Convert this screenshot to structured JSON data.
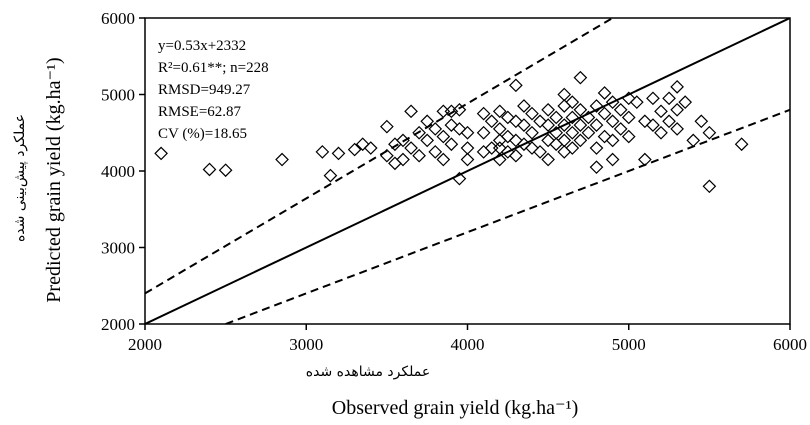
{
  "chart_data": {
    "type": "scatter",
    "xlabel": "Observed grain yield (kg.ha⁻¹)",
    "xlabel_fa": "عملکرد مشاهده شده",
    "ylabel": "Predicted grain yield (kg.ha⁻¹)",
    "ylabel_fa": "عملکرد پیش‌بینی شده",
    "xlim": [
      2000,
      6000
    ],
    "ylim": [
      2000,
      6000
    ],
    "xticks": [
      "2000",
      "3000",
      "4000",
      "5000",
      "6000"
    ],
    "yticks": [
      "2000",
      "3000",
      "4000",
      "5000",
      "6000"
    ],
    "grid": false,
    "statistics": [
      "y=0.53x+2332",
      "R²=0.61**; n=228",
      "RMSD=949.27",
      "RMSE=62.87",
      "CV (%)=18.65"
    ],
    "reference_lines": [
      {
        "style": "solid",
        "from": [
          2000,
          2000
        ],
        "to": [
          6000,
          6000
        ]
      },
      {
        "style": "dashed",
        "from": [
          2000,
          2400
        ],
        "to": [
          4900,
          6000
        ]
      },
      {
        "style": "dashed",
        "from": [
          2500,
          2000
        ],
        "to": [
          6000,
          4800
        ]
      }
    ],
    "marker": "diamond",
    "points": [
      [
        2100,
        4230
      ],
      [
        2400,
        4020
      ],
      [
        2500,
        4010
      ],
      [
        2850,
        4150
      ],
      [
        3100,
        4250
      ],
      [
        3150,
        3940
      ],
      [
        3200,
        4230
      ],
      [
        3300,
        4280
      ],
      [
        3350,
        4350
      ],
      [
        3400,
        4300
      ],
      [
        3500,
        4580
      ],
      [
        3500,
        4200
      ],
      [
        3550,
        4350
      ],
      [
        3550,
        4100
      ],
      [
        3600,
        4400
      ],
      [
        3600,
        4150
      ],
      [
        3650,
        4780
      ],
      [
        3650,
        4300
      ],
      [
        3700,
        4500
      ],
      [
        3700,
        4200
      ],
      [
        3750,
        4650
      ],
      [
        3750,
        4400
      ],
      [
        3800,
        4550
      ],
      [
        3800,
        4250
      ],
      [
        3850,
        4780
      ],
      [
        3850,
        4450
      ],
      [
        3850,
        4150
      ],
      [
        3900,
        4780
      ],
      [
        3900,
        4600
      ],
      [
        3900,
        4350
      ],
      [
        3950,
        4800
      ],
      [
        3950,
        4550
      ],
      [
        3950,
        3900
      ],
      [
        4000,
        4500
      ],
      [
        4000,
        4300
      ],
      [
        4000,
        4150
      ],
      [
        4100,
        4750
      ],
      [
        4100,
        4500
      ],
      [
        4100,
        4250
      ],
      [
        4150,
        4650
      ],
      [
        4150,
        4300
      ],
      [
        4200,
        4780
      ],
      [
        4200,
        4550
      ],
      [
        4200,
        4400
      ],
      [
        4200,
        4300
      ],
      [
        4200,
        4150
      ],
      [
        4250,
        4700
      ],
      [
        4250,
        4450
      ],
      [
        4250,
        4250
      ],
      [
        4300,
        5120
      ],
      [
        4300,
        4650
      ],
      [
        4300,
        4400
      ],
      [
        4300,
        4200
      ],
      [
        4350,
        4850
      ],
      [
        4350,
        4600
      ],
      [
        4350,
        4350
      ],
      [
        4400,
        4750
      ],
      [
        4400,
        4500
      ],
      [
        4400,
        4300
      ],
      [
        4450,
        4650
      ],
      [
        4450,
        4250
      ],
      [
        4500,
        4800
      ],
      [
        4500,
        4600
      ],
      [
        4500,
        4400
      ],
      [
        4500,
        4150
      ],
      [
        4550,
        4700
      ],
      [
        4550,
        4500
      ],
      [
        4550,
        4350
      ],
      [
        4600,
        5000
      ],
      [
        4600,
        4850
      ],
      [
        4600,
        4600
      ],
      [
        4600,
        4400
      ],
      [
        4600,
        4250
      ],
      [
        4650,
        4900
      ],
      [
        4650,
        4700
      ],
      [
        4650,
        4500
      ],
      [
        4650,
        4300
      ],
      [
        4700,
        5220
      ],
      [
        4700,
        4800
      ],
      [
        4700,
        4600
      ],
      [
        4700,
        4400
      ],
      [
        4750,
        4700
      ],
      [
        4750,
        4500
      ],
      [
        4800,
        4850
      ],
      [
        4800,
        4600
      ],
      [
        4800,
        4300
      ],
      [
        4800,
        4050
      ],
      [
        4850,
        5020
      ],
      [
        4850,
        4750
      ],
      [
        4850,
        4450
      ],
      [
        4900,
        4900
      ],
      [
        4900,
        4650
      ],
      [
        4900,
        4400
      ],
      [
        4900,
        4150
      ],
      [
        4950,
        4800
      ],
      [
        4950,
        4550
      ],
      [
        5000,
        4950
      ],
      [
        5000,
        4700
      ],
      [
        5000,
        4450
      ],
      [
        5050,
        4900
      ],
      [
        5100,
        4650
      ],
      [
        5100,
        4150
      ],
      [
        5150,
        4950
      ],
      [
        5150,
        4600
      ],
      [
        5200,
        4780
      ],
      [
        5200,
        4500
      ],
      [
        5250,
        4950
      ],
      [
        5250,
        4650
      ],
      [
        5300,
        5100
      ],
      [
        5300,
        4800
      ],
      [
        5300,
        4550
      ],
      [
        5350,
        4900
      ],
      [
        5400,
        4400
      ],
      [
        5450,
        4650
      ],
      [
        5500,
        4500
      ],
      [
        5500,
        3800
      ],
      [
        5700,
        4350
      ]
    ]
  }
}
